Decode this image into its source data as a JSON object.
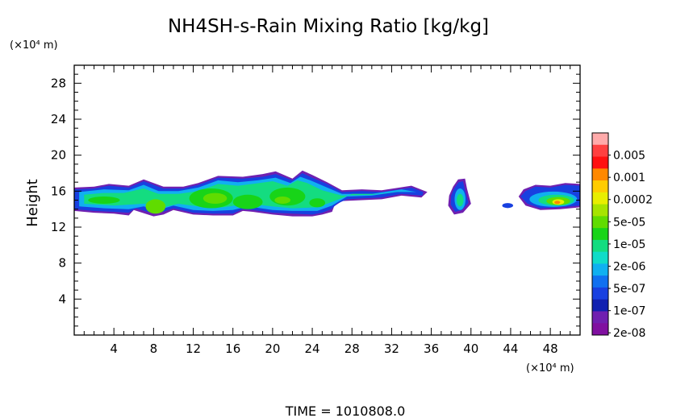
{
  "chart_data": {
    "type": "heatmap",
    "title": "NH4SH-s-Rain Mixing Ratio [kg/kg]",
    "ylabel": "Height",
    "x_unit": "(×10⁴ m)",
    "y_unit": "(×10⁴ m)",
    "footer": "TIME = 1010808.0",
    "xlim": [
      0,
      51
    ],
    "ylim": [
      0,
      30
    ],
    "x_ticks": [
      4,
      8,
      12,
      16,
      20,
      24,
      28,
      32,
      36,
      40,
      44,
      48
    ],
    "x_tick_labels": [
      "4",
      "8",
      "12",
      "16",
      "20",
      "24",
      "28",
      "32",
      "36",
      "40",
      "44",
      "48"
    ],
    "y_ticks": [
      4,
      8,
      12,
      16,
      20,
      24,
      28
    ],
    "y_tick_labels": [
      "4",
      "8",
      "12",
      "16",
      "20",
      "24",
      "28"
    ],
    "colorbar": {
      "labels": [
        "0.005",
        "0.001",
        "0.0002",
        "5e-05",
        "1e-05",
        "2e-06",
        "5e-07",
        "1e-07",
        "2e-08"
      ],
      "colors": [
        "#ffaaaa",
        "#ff4040",
        "#ff1010",
        "#ff8800",
        "#ffcc00",
        "#e8ee00",
        "#a6e400",
        "#60dc00",
        "#18d418",
        "#14dc80",
        "#10dcc8",
        "#10b0f0",
        "#1070f0",
        "#1840e0",
        "#1020b0",
        "#7020b0",
        "#8010a0"
      ]
    },
    "cloud_regions": [
      {
        "x": [
          0.0,
          35.6
        ],
        "y": [
          13.3,
          18.3
        ],
        "peak": "5e-05"
      },
      {
        "x": [
          37.7,
          40.0
        ],
        "y": [
          13.4,
          17.4
        ],
        "peak": "2e-06"
      },
      {
        "x": [
          43.2,
          44.2
        ],
        "y": [
          14.2,
          14.7
        ],
        "peak": "5e-07"
      },
      {
        "x": [
          44.8,
          51.0
        ],
        "y": [
          13.9,
          16.9
        ],
        "peak": "0.0002"
      }
    ]
  }
}
